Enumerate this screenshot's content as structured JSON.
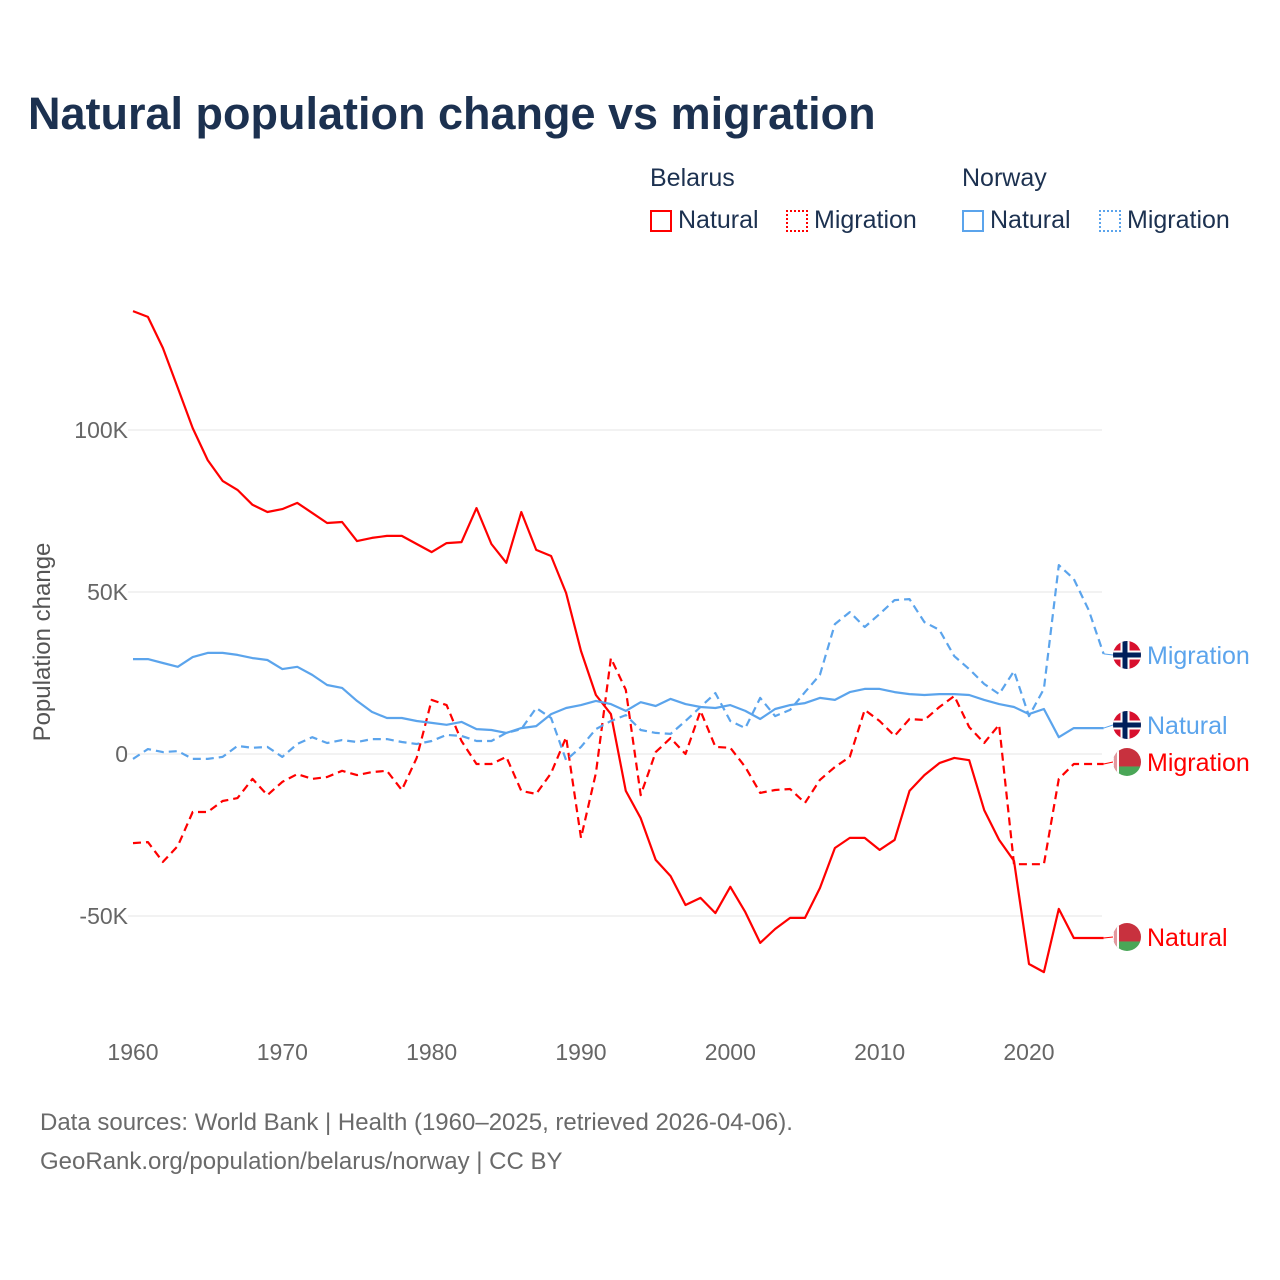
{
  "chart_data": {
    "type": "line",
    "title": "Natural population change vs migration",
    "ylabel": "Population change",
    "xlabel": "",
    "ylim": [
      -80000,
      150000
    ],
    "xlim": [
      1960,
      2025
    ],
    "x_ticks": [
      1960,
      1970,
      1980,
      1990,
      2000,
      2010,
      2020
    ],
    "x_tick_labels": [
      "1960",
      "1970",
      "1980",
      "1990",
      "2000",
      "2010",
      "2020"
    ],
    "y_ticks": [
      -50000,
      0,
      50000,
      100000
    ],
    "y_tick_labels": [
      "-50K",
      "0",
      "50K",
      "100K"
    ],
    "grid": true,
    "legend_placement": "top-right",
    "x_start": 1960,
    "series": [
      {
        "country": "Belarus",
        "name": "Natural",
        "color": "#ff0000",
        "dash": false,
        "end_label": "Natural",
        "flag": "belarus",
        "values": [
          136.7,
          134.9,
          125.3,
          113,
          100.6,
          90.7,
          84.3,
          81.5,
          76.9,
          74.7,
          75.6,
          77.5,
          74.4,
          71.3,
          71.6,
          65.7,
          66.7,
          67.3,
          67.3,
          64.8,
          62.3,
          65.1,
          65.4,
          75.9,
          64.8,
          59,
          74.7,
          63,
          61.1,
          49.7,
          31.8,
          18.2,
          12.3,
          -11.4,
          -19.8,
          -32.7,
          -37.7,
          -46.6,
          -44.4,
          -49.1,
          -41,
          -48.8,
          -58.3,
          -54,
          -50.6,
          -50.6,
          -41.4,
          -29,
          -25.9,
          -25.9,
          -29.6,
          -26.5,
          -11.4,
          -6.5,
          -2.8,
          -1.2,
          -1.9,
          -17.3,
          -26.5,
          -33,
          -64.8,
          -67.3,
          -47.8,
          -56.8,
          -56.8,
          -56.8
        ]
      },
      {
        "country": "Belarus",
        "name": "Migration",
        "color": "#ff0000",
        "dash": true,
        "end_label": "Migration",
        "flag": "belarus",
        "values": [
          -27.5,
          -27.2,
          -33.3,
          -28.4,
          -17.9,
          -17.9,
          -14.5,
          -13.6,
          -7.7,
          -12.7,
          -8.6,
          -6.2,
          -7.7,
          -7.1,
          -5.2,
          -6.5,
          -5.6,
          -5.2,
          -11.1,
          -1.2,
          16.7,
          15.1,
          4,
          -3.1,
          -3.1,
          -0.9,
          -11.4,
          -12.3,
          -5.9,
          5.2,
          -25.9,
          -5.9,
          29.6,
          19.8,
          -12.7,
          0.6,
          4.9,
          0,
          13.3,
          2.2,
          1.9,
          -4,
          -12,
          -11.1,
          -10.8,
          -15.1,
          -8,
          -4,
          -0.9,
          13.6,
          10.2,
          5.6,
          10.8,
          10.5,
          14.5,
          17.9,
          8.3,
          3.4,
          9,
          -34,
          -34,
          -34,
          -7.7,
          -3.1,
          -3.1,
          -3.1
        ]
      },
      {
        "country": "Norway",
        "name": "Natural",
        "color": "#5ba4ec",
        "dash": false,
        "end_label": "Natural",
        "flag": "norway",
        "values": [
          29.3,
          29.3,
          28.1,
          26.9,
          29.9,
          31.2,
          31.2,
          30.6,
          29.6,
          29,
          26.2,
          26.9,
          24.4,
          21.3,
          20.4,
          16.4,
          13,
          11.1,
          11.1,
          10.2,
          9.6,
          9,
          9.9,
          7.7,
          7.4,
          6.5,
          8,
          8.6,
          12.3,
          14.2,
          15.1,
          16.4,
          15.4,
          13.3,
          16,
          14.8,
          17,
          15.4,
          14.5,
          14.2,
          15.1,
          13.3,
          10.8,
          13.9,
          15.1,
          15.7,
          17.3,
          16.7,
          19.1,
          20.1,
          20.1,
          19.1,
          18.5,
          18.2,
          18.5,
          18.5,
          18.2,
          16.7,
          15.4,
          14.5,
          12.3,
          13.9,
          5.2,
          8,
          8,
          8
        ]
      },
      {
        "country": "Norway",
        "name": "Migration",
        "color": "#5ba4ec",
        "dash": true,
        "end_label": "Migration",
        "flag": "norway",
        "values": [
          -1.5,
          1.5,
          0.6,
          0.9,
          -1.5,
          -1.5,
          -0.9,
          2.5,
          1.9,
          2.2,
          -0.9,
          3.1,
          5.2,
          3.4,
          4.3,
          3.7,
          4.6,
          4.6,
          3.7,
          3.1,
          4,
          5.9,
          5.6,
          4,
          4,
          6.5,
          7.7,
          14.2,
          11.1,
          -1.9,
          2.2,
          7.7,
          10.2,
          12,
          7.4,
          6.5,
          6.2,
          10.2,
          14.5,
          18.8,
          10.2,
          8,
          17.3,
          11.7,
          13.6,
          19.1,
          24.4,
          40.1,
          43.8,
          39.2,
          43.2,
          47.5,
          47.8,
          40.7,
          38.3,
          30.2,
          26.2,
          21.6,
          18.5,
          25.6,
          11.7,
          20.1,
          58.3,
          54,
          44.4,
          30.9
        ]
      }
    ],
    "value_unit": "thousands"
  },
  "legend": {
    "groups": [
      {
        "title": "Belarus",
        "items": [
          "Natural",
          "Migration"
        ]
      },
      {
        "title": "Norway",
        "items": [
          "Natural",
          "Migration"
        ]
      }
    ]
  },
  "footer": {
    "line1": "Data sources: World Bank | Health (1960–2025, retrieved 2026-04-06).",
    "line2": "GeoRank.org/population/belarus/norway | CC BY"
  }
}
